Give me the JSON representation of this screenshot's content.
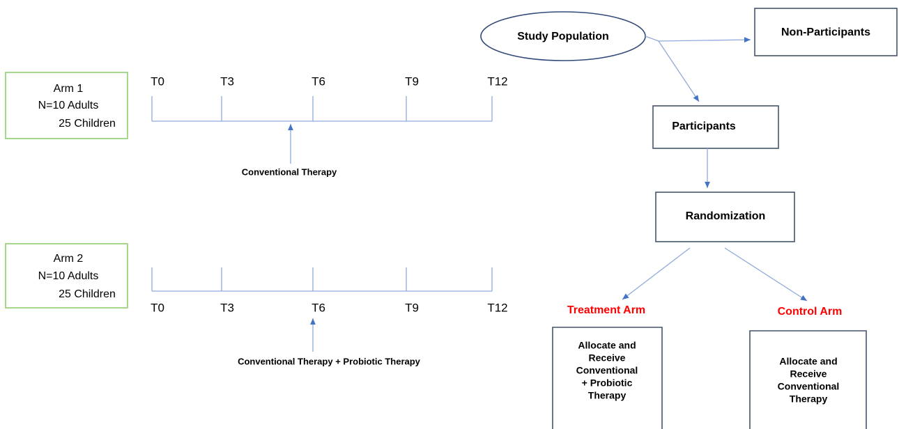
{
  "arms": [
    {
      "lines": [
        "Arm 1",
        "N=10 Adults",
        "25 Children"
      ],
      "timepoints": [
        "T0",
        "T3",
        "T6",
        "T9",
        "T12"
      ],
      "intervention": "Conventional Therapy"
    },
    {
      "lines": [
        "Arm 2",
        "N=10 Adults",
        "25 Children"
      ],
      "timepoints": [
        "T0",
        "T3",
        "T6",
        "T9",
        "T12"
      ],
      "intervention": "Conventional Therapy + Probiotic Therapy"
    }
  ],
  "flow": {
    "population": "Study Population",
    "non_participants": "Non-Participants",
    "participants": "Participants",
    "randomization": "Randomization",
    "arms": [
      {
        "name": "Treatment Arm",
        "lines": [
          "Allocate and",
          "Receive",
          "Conventional",
          "+ Probiotic",
          "Therapy"
        ]
      },
      {
        "name": "Control Arm",
        "lines": [
          "Allocate and",
          "Receive",
          "Conventional",
          "Therapy"
        ]
      }
    ]
  }
}
